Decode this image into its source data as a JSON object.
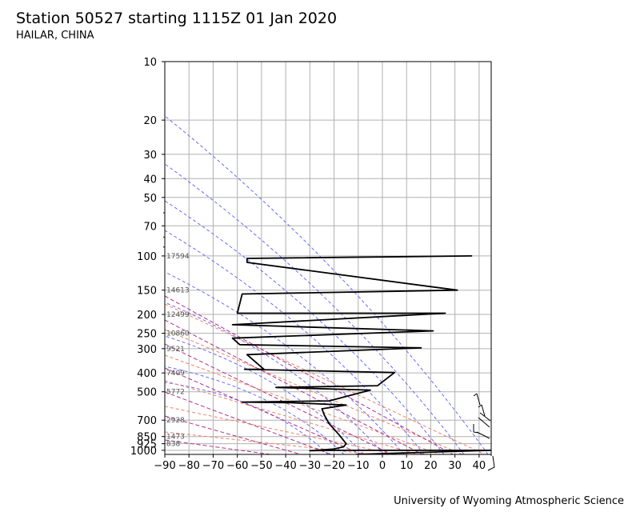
{
  "header": {
    "title": "Station 50527 starting 1115Z 01 Jan 2020",
    "subtitle": "HAILAR, CHINA"
  },
  "footer": {
    "credit": "University of Wyoming Atmospheric Science"
  },
  "chart_data": {
    "type": "line",
    "title": "Station 50527 starting 1115Z 01 Jan 2020",
    "subtitle": "HAILAR, CHINA",
    "xlabel": "",
    "ylabel": "",
    "xlim": [
      -90,
      45
    ],
    "ylim": [
      1050,
      10
    ],
    "yscale": "log",
    "grid": true,
    "x_ticks": [
      -90,
      -80,
      -70,
      -60,
      -50,
      -40,
      -30,
      -20,
      -10,
      0,
      10,
      20,
      30,
      40
    ],
    "x_tick_labels": [
      "−90",
      "−80",
      "−70",
      "−60",
      "−50",
      "−40",
      "−30",
      "−20",
      "−10",
      "0",
      "10",
      "20",
      "30",
      "40"
    ],
    "y_ticks": [
      10,
      20,
      30,
      40,
      50,
      70,
      100,
      150,
      200,
      250,
      300,
      400,
      500,
      700,
      850,
      925,
      1000
    ],
    "y_tick_labels": [
      "10",
      "20",
      "30",
      "40",
      "50",
      "70",
      "100",
      "150",
      "200",
      "250",
      "300",
      "400",
      "500",
      "700",
      "850",
      "925",
      "1000"
    ],
    "height_labels": [
      {
        "p": 100,
        "text": "17594"
      },
      {
        "p": 150,
        "text": "14613"
      },
      {
        "p": 200,
        "text": "12499"
      },
      {
        "p": 250,
        "text": "10860"
      },
      {
        "p": 300,
        "text": "9521"
      },
      {
        "p": 400,
        "text": "7409"
      },
      {
        "p": 500,
        "text": "5772"
      },
      {
        "p": 700,
        "text": "2928"
      },
      {
        "p": 850,
        "text": "1473"
      },
      {
        "p": 925,
        "text": "838"
      }
    ],
    "series": [
      {
        "values": [
          {
            "x": -11,
            "p": 1050
          },
          {
            "x": 45,
            "p": 1000
          },
          {
            "x": -18,
            "p": 1000
          },
          {
            "x": -30,
            "p": 1005
          },
          {
            "x": -20,
            "p": 985
          },
          {
            "x": -16,
            "p": 960
          },
          {
            "x": -15,
            "p": 925
          },
          {
            "x": -18,
            "p": 830
          },
          {
            "x": -22,
            "p": 730
          },
          {
            "x": -24,
            "p": 660
          },
          {
            "x": -25,
            "p": 612
          },
          {
            "x": -15,
            "p": 585
          },
          {
            "x": -37,
            "p": 570
          },
          {
            "x": -58,
            "p": 565
          },
          {
            "x": -22,
            "p": 557
          },
          {
            "x": -5,
            "p": 490
          },
          {
            "x": -44,
            "p": 475
          },
          {
            "x": -2,
            "p": 465
          },
          {
            "x": 5,
            "p": 398
          },
          {
            "x": -57,
            "p": 383
          },
          {
            "x": -49,
            "p": 383
          },
          {
            "x": -56,
            "p": 322
          },
          {
            "x": 16,
            "p": 297
          },
          {
            "x": -59,
            "p": 286
          },
          {
            "x": -62,
            "p": 265
          },
          {
            "x": 21,
            "p": 243
          },
          {
            "x": -62,
            "p": 226
          },
          {
            "x": 26,
            "p": 197
          },
          {
            "x": -60,
            "p": 197
          },
          {
            "x": -58,
            "p": 157
          },
          {
            "x": 31,
            "p": 150
          },
          {
            "x": -56,
            "p": 108
          },
          {
            "x": -56,
            "p": 103
          },
          {
            "x": 37,
            "p": 100
          }
        ]
      }
    ]
  }
}
